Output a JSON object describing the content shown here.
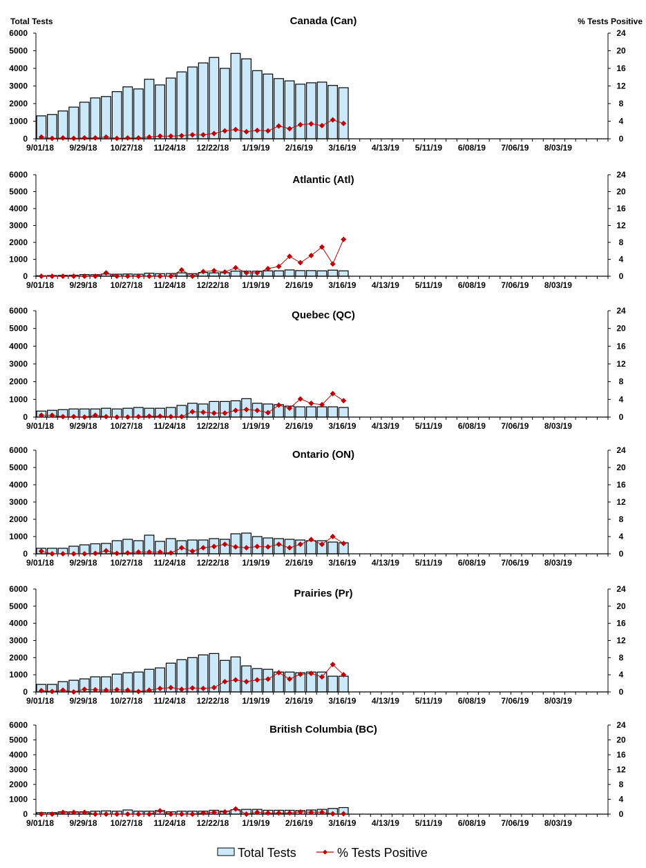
{
  "left_axis_title": "Total Tests",
  "right_axis_title": "% Tests Positive",
  "legend": {
    "bars_label": "Total Tests",
    "line_label": "% Tests Positive",
    "placement": "bottom"
  },
  "colors": {
    "bar_fill": "#cce9fa",
    "bar_stroke": "#000000",
    "line": "#c00000"
  },
  "chart_data": [
    {
      "type": "bar+line",
      "title": "Canada (Can)",
      "x_tick_labels": [
        "9/01/18",
        "9/29/18",
        "10/27/18",
        "11/24/18",
        "12/22/18",
        "1/19/19",
        "2/16/19",
        "3/16/19",
        "4/13/19",
        "5/11/19",
        "6/08/19",
        "7/06/19",
        "8/03/19"
      ],
      "y_left_ticks": [
        "0",
        "1000",
        "2000",
        "3000",
        "4000",
        "5000",
        "6000"
      ],
      "y_right_ticks": [
        "0",
        "4",
        "8",
        "12",
        "16",
        "20",
        "24"
      ],
      "ylim_left": [
        0,
        6000
      ],
      "ylim_right": [
        0,
        24
      ],
      "series": [
        {
          "name": "Total Tests",
          "type": "bar",
          "values": [
            1300,
            1380,
            1580,
            1800,
            2080,
            2320,
            2400,
            2680,
            2950,
            2830,
            3380,
            3060,
            3450,
            3800,
            4080,
            4310,
            4620,
            4000,
            4850,
            4540,
            3870,
            3680,
            3420,
            3290,
            3100,
            3180,
            3220,
            3030,
            2900
          ]
        },
        {
          "name": "% Tests Positive",
          "type": "line",
          "values": [
            0.4,
            0.1,
            0.2,
            0.1,
            0.2,
            0.2,
            0.4,
            0.1,
            0.2,
            0.2,
            0.4,
            0.6,
            0.6,
            0.7,
            0.9,
            0.9,
            1.2,
            1.8,
            2.1,
            1.6,
            1.9,
            1.8,
            2.9,
            2.3,
            3.2,
            3.4,
            3.0,
            4.3,
            3.5
          ]
        }
      ]
    },
    {
      "type": "bar+line",
      "title": "Atlantic (Atl)",
      "x_tick_labels": [
        "9/01/18",
        "9/29/18",
        "10/27/18",
        "11/24/18",
        "12/22/18",
        "1/19/19",
        "2/16/19",
        "3/16/19",
        "4/13/19",
        "5/11/19",
        "6/08/19",
        "7/06/19",
        "8/03/19"
      ],
      "y_left_ticks": [
        "0",
        "1000",
        "2000",
        "3000",
        "4000",
        "5000",
        "6000"
      ],
      "y_right_ticks": [
        "0",
        "4",
        "8",
        "12",
        "16",
        "20",
        "24"
      ],
      "ylim_left": [
        0,
        6000
      ],
      "ylim_right": [
        0,
        24
      ],
      "series": [
        {
          "name": "Total Tests",
          "type": "bar",
          "values": [
            30,
            40,
            50,
            60,
            100,
            90,
            130,
            120,
            130,
            120,
            180,
            150,
            160,
            200,
            150,
            220,
            200,
            210,
            300,
            300,
            300,
            320,
            320,
            370,
            330,
            330,
            320,
            360,
            320
          ]
        },
        {
          "name": "% Tests Positive",
          "type": "line",
          "values": [
            0,
            0,
            0,
            0,
            0,
            0,
            0.8,
            0,
            0,
            0,
            0,
            0,
            0,
            1.5,
            0,
            1.1,
            1.3,
            1.0,
            2.0,
            0.8,
            0.8,
            1.8,
            2.3,
            4.7,
            3.2,
            4.9,
            6.9,
            2.9,
            8.7
          ]
        }
      ]
    },
    {
      "type": "bar+line",
      "title": "Quebec (QC)",
      "x_tick_labels": [
        "9/01/18",
        "9/29/18",
        "10/27/18",
        "11/24/18",
        "12/22/18",
        "1/19/19",
        "2/16/19",
        "3/16/19",
        "4/13/19",
        "5/11/19",
        "6/08/19",
        "7/06/19",
        "8/03/19"
      ],
      "y_left_ticks": [
        "0",
        "1000",
        "2000",
        "3000",
        "4000",
        "5000",
        "6000"
      ],
      "y_right_ticks": [
        "0",
        "4",
        "8",
        "12",
        "16",
        "20",
        "24"
      ],
      "ylim_left": [
        0,
        6000
      ],
      "ylim_right": [
        0,
        24
      ],
      "series": [
        {
          "name": "Total Tests",
          "type": "bar",
          "values": [
            340,
            380,
            420,
            460,
            460,
            460,
            500,
            460,
            500,
            540,
            500,
            500,
            540,
            660,
            780,
            740,
            880,
            880,
            920,
            1040,
            780,
            740,
            700,
            620,
            580,
            580,
            580,
            580,
            540
          ]
        },
        {
          "name": "% Tests Positive",
          "type": "line",
          "values": [
            0.4,
            0.4,
            0.1,
            0.1,
            0,
            0.4,
            0.1,
            0,
            0,
            0.1,
            0.2,
            0.2,
            0.1,
            0.1,
            1.2,
            1.1,
            0.9,
            0.9,
            1.5,
            1.7,
            1.5,
            1.0,
            2.7,
            2.0,
            4.1,
            3.1,
            2.8,
            5.3,
            3.7
          ]
        }
      ]
    },
    {
      "type": "bar+line",
      "title": "Ontario (ON)",
      "x_tick_labels": [
        "9/01/18",
        "9/29/18",
        "10/27/18",
        "11/24/18",
        "12/22/18",
        "1/19/19",
        "2/16/19",
        "3/16/19",
        "4/13/19",
        "5/11/19",
        "6/08/19",
        "7/06/19",
        "8/03/19"
      ],
      "y_left_ticks": [
        "0",
        "1000",
        "2000",
        "3000",
        "4000",
        "5000",
        "6000"
      ],
      "y_right_ticks": [
        "0",
        "4",
        "8",
        "12",
        "16",
        "20",
        "24"
      ],
      "ylim_left": [
        0,
        6000
      ],
      "ylim_right": [
        0,
        24
      ],
      "series": [
        {
          "name": "Total Tests",
          "type": "bar",
          "values": [
            320,
            320,
            320,
            440,
            520,
            580,
            600,
            760,
            840,
            760,
            1080,
            720,
            880,
            760,
            800,
            800,
            880,
            840,
            1160,
            1200,
            1000,
            920,
            880,
            840,
            800,
            760,
            760,
            680,
            640
          ]
        },
        {
          "name": "% Tests Positive",
          "type": "line",
          "values": [
            0.6,
            0,
            0,
            0,
            0,
            0.1,
            0.7,
            0.1,
            0.2,
            0.4,
            0.4,
            0.4,
            0.2,
            1.4,
            0.6,
            1.4,
            1.7,
            2.2,
            1.6,
            1.4,
            1.7,
            1.6,
            2.2,
            1.4,
            2.2,
            3.3,
            2.2,
            4.0,
            2.4
          ]
        }
      ]
    },
    {
      "type": "bar+line",
      "title": "Prairies (Pr)",
      "x_tick_labels": [
        "9/01/18",
        "9/29/18",
        "10/27/18",
        "11/24/18",
        "12/22/18",
        "1/19/19",
        "2/16/19",
        "3/16/19",
        "4/13/19",
        "5/11/19",
        "6/08/19",
        "7/06/19",
        "8/03/19"
      ],
      "y_left_ticks": [
        "0",
        "1000",
        "2000",
        "3000",
        "4000",
        "5000",
        "6000"
      ],
      "y_right_ticks": [
        "0",
        "4",
        "8",
        "12",
        "16",
        "20",
        "24"
      ],
      "ylim_left": [
        0,
        6000
      ],
      "ylim_right": [
        0,
        24
      ],
      "series": [
        {
          "name": "Total Tests",
          "type": "bar",
          "values": [
            440,
            440,
            600,
            680,
            760,
            880,
            880,
            1040,
            1120,
            1160,
            1320,
            1400,
            1680,
            1880,
            2000,
            2160,
            2240,
            1840,
            2040,
            1520,
            1360,
            1320,
            1160,
            1160,
            1120,
            1160,
            1160,
            920,
            920
          ]
        },
        {
          "name": "% Tests Positive",
          "type": "line",
          "values": [
            0.3,
            0.1,
            0.4,
            0,
            0.6,
            0.5,
            0.4,
            0.5,
            0.4,
            0.1,
            0.4,
            0.8,
            1.0,
            0.6,
            0.9,
            0.8,
            1.0,
            2.4,
            2.8,
            2.4,
            2.8,
            3.0,
            4.5,
            3.0,
            4.1,
            4.3,
            3.5,
            6.4,
            4.0
          ]
        }
      ]
    },
    {
      "type": "bar+line",
      "title": "British Columbia (BC)",
      "x_tick_labels": [
        "9/01/18",
        "9/29/18",
        "10/27/18",
        "11/24/18",
        "12/22/18",
        "1/19/19",
        "2/16/19",
        "3/16/19",
        "4/13/19",
        "5/11/19",
        "6/08/19",
        "7/06/19",
        "8/03/19"
      ],
      "y_left_ticks": [
        "0",
        "1000",
        "2000",
        "3000",
        "4000",
        "5000",
        "6000"
      ],
      "y_right_ticks": [
        "0",
        "4",
        "8",
        "12",
        "16",
        "20",
        "24"
      ],
      "ylim_left": [
        0,
        6000
      ],
      "ylim_right": [
        0,
        24
      ],
      "series": [
        {
          "name": "Total Tests",
          "type": "bar",
          "values": [
            100,
            100,
            160,
            160,
            160,
            200,
            220,
            200,
            280,
            200,
            200,
            240,
            160,
            200,
            200,
            200,
            260,
            200,
            300,
            320,
            320,
            260,
            260,
            260,
            240,
            280,
            320,
            380,
            440
          ]
        },
        {
          "name": "% Tests Positive",
          "type": "line",
          "values": [
            0,
            0,
            0.5,
            0.5,
            0.5,
            0,
            0,
            0,
            0,
            0,
            0,
            0.9,
            0,
            0,
            0,
            0.3,
            0.5,
            0.6,
            1.4,
            0,
            0.5,
            0.3,
            0.3,
            0.3,
            0.6,
            0.5,
            0.5,
            0.1,
            0.1
          ]
        }
      ]
    }
  ]
}
